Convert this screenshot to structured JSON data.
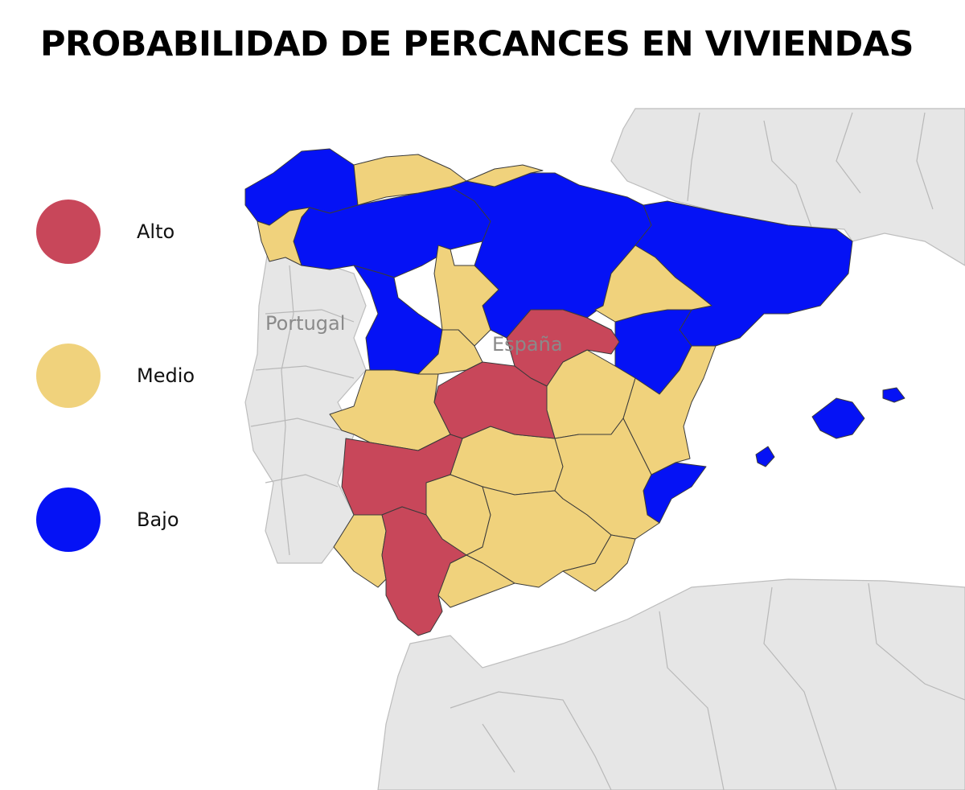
{
  "title": "PROBABILIDAD DE PERCANCES EN VIVIENDAS",
  "legend": [
    {
      "label": "Alto",
      "level": "alto",
      "color": "#c8475a"
    },
    {
      "label": "Medio",
      "level": "medio",
      "color": "#f0d27c"
    },
    {
      "label": "Bajo",
      "level": "bajo",
      "color": "#0512f5"
    }
  ],
  "map": {
    "country_labels": {
      "portugal": "Portugal",
      "spain": "España"
    }
  }
}
